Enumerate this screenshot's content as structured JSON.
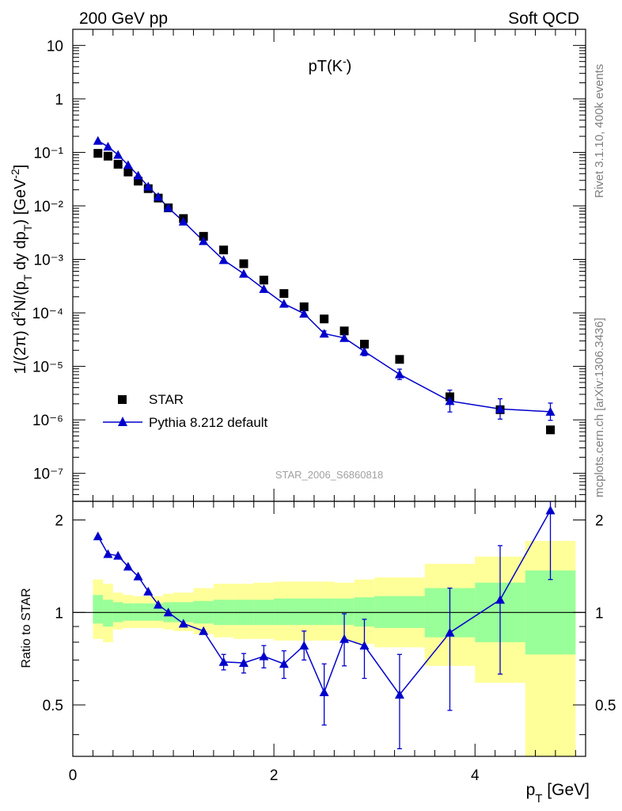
{
  "header": {
    "left": "200 GeV pp",
    "right": "Soft QCD"
  },
  "side_labels": {
    "rivet": "Rivet 3.1.10,  400k events",
    "mcplots": "mcplots.cern.ch [arXiv:1306.3436]"
  },
  "colors": {
    "data": "#000000",
    "mc": "#0000cc",
    "band_inner": "#99ff99",
    "band_outer": "#ffff99"
  },
  "chart_data": [
    {
      "type": "scatter",
      "title": "pT(K⁻)",
      "watermark": "STAR_2006_S6860818",
      "ylabel": "1/(2π) d²N/(p_T dy dp_T) [GeV⁻²]",
      "yscale": "log",
      "ylim": [
        3e-08,
        20
      ],
      "xlim": [
        0,
        5.1
      ],
      "y_ticks": [
        "10⁻⁷",
        "10⁻⁶",
        "10⁻⁵",
        "10⁻⁴",
        "10⁻³",
        "10⁻²",
        "10⁻¹",
        "1",
        "10"
      ],
      "legend": {
        "position": "bottom-left",
        "entries": [
          "STAR",
          "Pythia 8.212 default"
        ]
      },
      "series": [
        {
          "name": "STAR",
          "x": [
            0.25,
            0.35,
            0.45,
            0.55,
            0.65,
            0.75,
            0.85,
            0.95,
            1.1,
            1.3,
            1.5,
            1.7,
            1.9,
            2.1,
            2.3,
            2.5,
            2.7,
            2.9,
            3.25,
            3.75,
            4.25,
            4.75
          ],
          "y": [
            0.096,
            0.085,
            0.06,
            0.043,
            0.029,
            0.021,
            0.014,
            0.0092,
            0.0058,
            0.0027,
            0.0015,
            0.00083,
            0.00041,
            0.00023,
            0.00013,
            7.7e-05,
            4.6e-05,
            2.6e-05,
            1.35e-05,
            2.7e-06,
            1.55e-06,
            6.5e-07
          ]
        },
        {
          "name": "Pythia 8.212 default",
          "x": [
            0.25,
            0.35,
            0.45,
            0.55,
            0.65,
            0.75,
            0.85,
            0.95,
            1.1,
            1.3,
            1.5,
            1.7,
            1.9,
            2.1,
            2.3,
            2.5,
            2.7,
            2.9,
            3.25,
            3.75,
            4.25,
            4.75
          ],
          "y": [
            0.165,
            0.128,
            0.09,
            0.058,
            0.037,
            0.023,
            0.0148,
            0.0092,
            0.0051,
            0.0022,
            0.00097,
            0.00054,
            0.00028,
            0.000148,
            9.7e-05,
            4.1e-05,
            3.4e-05,
            1.9e-05,
            7.1e-06,
            2.25e-06,
            1.6e-06,
            1.42e-06
          ],
          "yerr_factor": [
            1,
            1,
            1,
            1,
            1,
            1,
            1,
            1,
            1,
            1,
            1,
            1,
            1,
            1,
            1,
            1.12,
            1.15,
            1.2,
            1.25,
            1.6,
            1.55,
            1.45
          ]
        }
      ]
    },
    {
      "type": "scatter",
      "ylabel": "Ratio to STAR",
      "xlabel": "p_T [GeV]",
      "ylim": [
        0.34,
        2.3
      ],
      "xlim": [
        0,
        5.1
      ],
      "x_ticks": [
        0,
        2,
        4
      ],
      "y_ticks": [
        0.5,
        1,
        2
      ],
      "bin_edges": [
        0.2,
        0.3,
        0.4,
        0.5,
        0.6,
        0.7,
        0.8,
        0.9,
        1.0,
        1.2,
        1.4,
        1.6,
        1.8,
        2.0,
        2.2,
        2.4,
        2.6,
        2.8,
        3.0,
        3.5,
        4.0,
        4.5,
        5.0
      ],
      "band_inner": {
        "lo": [
          0.92,
          0.9,
          0.93,
          0.94,
          0.94,
          0.94,
          0.94,
          0.93,
          0.93,
          0.92,
          0.91,
          0.91,
          0.91,
          0.91,
          0.91,
          0.91,
          0.91,
          0.9,
          0.89,
          0.83,
          0.8,
          0.73
        ],
        "hi": [
          1.14,
          1.1,
          1.08,
          1.07,
          1.07,
          1.07,
          1.07,
          1.08,
          1.08,
          1.09,
          1.1,
          1.1,
          1.1,
          1.11,
          1.11,
          1.11,
          1.11,
          1.12,
          1.13,
          1.2,
          1.25,
          1.37
        ]
      },
      "band_outer": {
        "lo": [
          0.82,
          0.8,
          0.88,
          0.89,
          0.89,
          0.89,
          0.89,
          0.88,
          0.87,
          0.85,
          0.83,
          0.82,
          0.82,
          0.81,
          0.81,
          0.81,
          0.81,
          0.79,
          0.77,
          0.67,
          0.59,
          0.3
        ],
        "hi": [
          1.28,
          1.24,
          1.16,
          1.14,
          1.13,
          1.13,
          1.13,
          1.15,
          1.16,
          1.2,
          1.24,
          1.24,
          1.25,
          1.26,
          1.26,
          1.26,
          1.25,
          1.28,
          1.3,
          1.44,
          1.52,
          1.71
        ]
      },
      "series": [
        {
          "name": "Pythia 8.212 default",
          "x": [
            0.25,
            0.35,
            0.45,
            0.55,
            0.65,
            0.75,
            0.85,
            0.95,
            1.1,
            1.3,
            1.5,
            1.7,
            1.9,
            2.1,
            2.3,
            2.5,
            2.7,
            2.9,
            3.25,
            3.75,
            4.25,
            4.75
          ],
          "y": [
            1.77,
            1.55,
            1.53,
            1.41,
            1.31,
            1.17,
            1.06,
            1.0,
            0.92,
            0.87,
            0.69,
            0.685,
            0.72,
            0.68,
            0.78,
            0.55,
            0.82,
            0.78,
            0.54,
            0.86,
            1.1,
            2.15
          ],
          "err_lo": [
            0,
            0,
            0,
            0,
            0,
            0,
            0,
            0,
            0,
            0,
            0.04,
            0.05,
            0.06,
            0.07,
            0.08,
            0.12,
            0.15,
            0.17,
            0.18,
            0.38,
            0.47,
            0.87
          ],
          "err_hi": [
            0,
            0,
            0,
            0,
            0,
            0,
            0,
            0,
            0,
            0,
            0.04,
            0.05,
            0.06,
            0.07,
            0.09,
            0.13,
            0.17,
            0.17,
            0.19,
            0.34,
            0.55,
            0.45
          ]
        }
      ]
    }
  ]
}
